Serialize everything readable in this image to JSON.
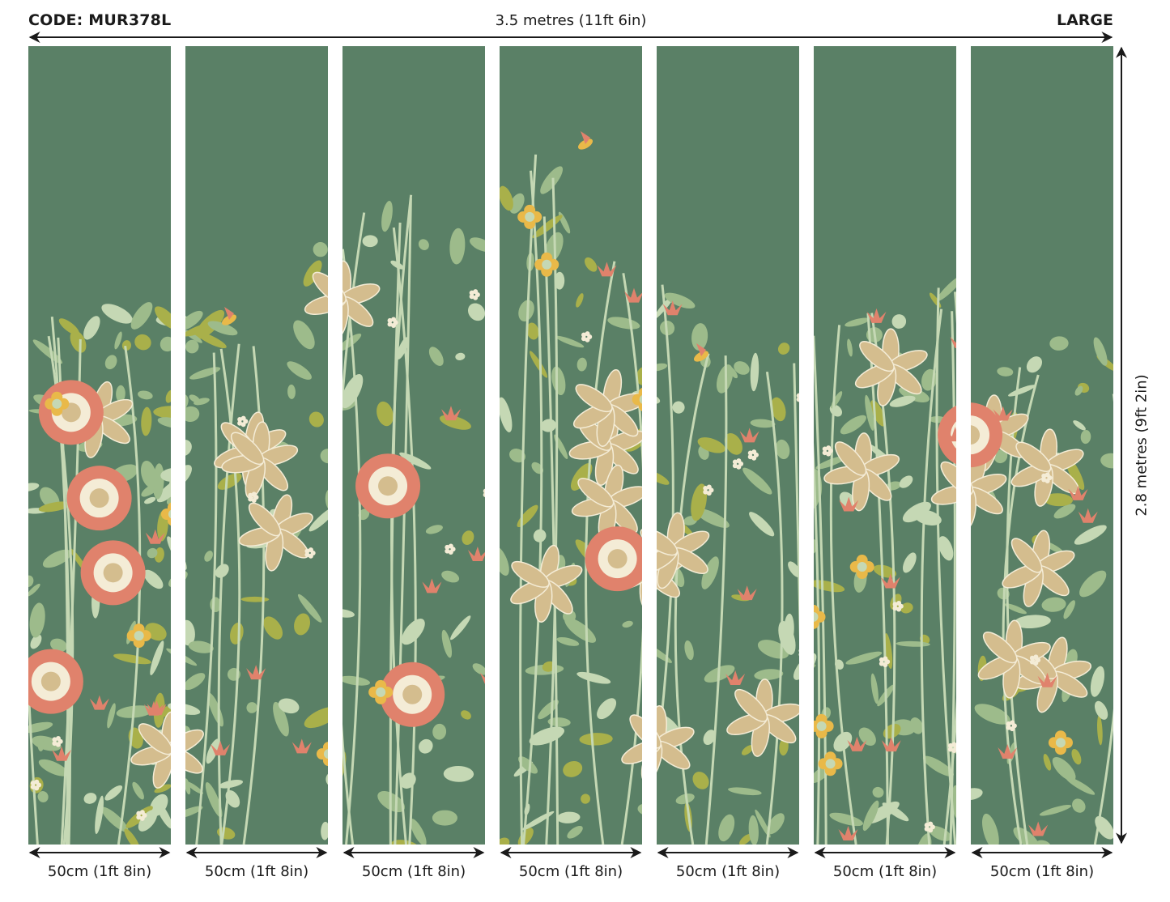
{
  "header": {
    "code": "CODE: MUR378L",
    "total_width": "3.5 metres (11ft 6in)",
    "size": "LARGE"
  },
  "total_height": "2.8 metres (9ft 2in)",
  "panels": [
    {
      "label": "50cm (1ft 8in)"
    },
    {
      "label": "50cm (1ft 8in)"
    },
    {
      "label": "50cm (1ft 8in)"
    },
    {
      "label": "50cm (1ft 8in)"
    },
    {
      "label": "50cm (1ft 8in)"
    },
    {
      "label": "50cm (1ft 8in)"
    },
    {
      "label": "50cm (1ft 8in)"
    }
  ],
  "colors": {
    "background_green": "#5a8066",
    "leaf_light": "#9dbb8b",
    "leaf_pale": "#c5d8b4",
    "lily_beige": "#d4bd8e",
    "flower_salmon": "#e0826c",
    "flower_yellow": "#e9b949",
    "cream": "#f4ecd6",
    "olive": "#a9b04a"
  }
}
